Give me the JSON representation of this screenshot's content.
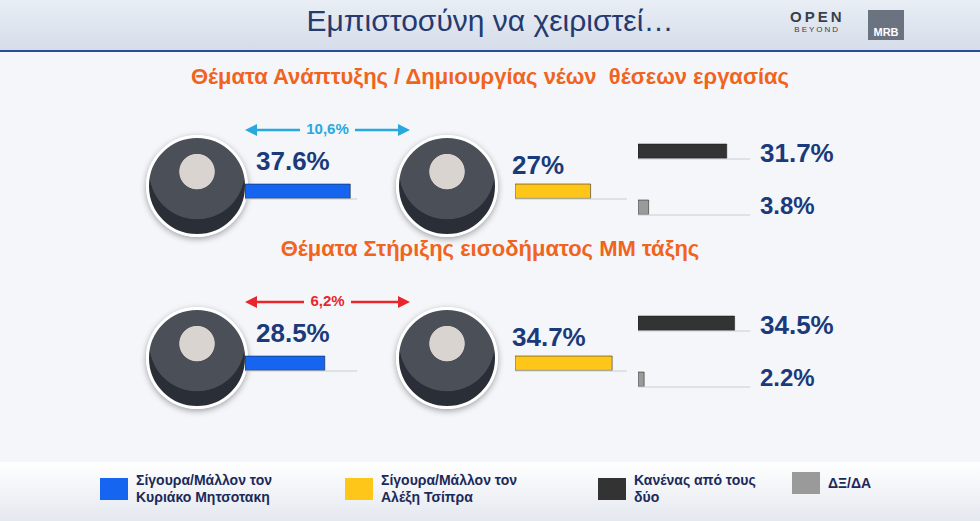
{
  "header": {
    "title": "Εμπιστοσύνη να χειριστεί…",
    "logo": "OPEN",
    "logo_sub": "BEYOND",
    "logo_mark": "MRB"
  },
  "chart_data": [
    {
      "type": "bar",
      "title": "Θέματα Ανάπτυξης / Δημιουργίας νέων  θέσεων εργασίας",
      "orientation": "horizontal",
      "categories": [
        "Σίγουρα/Μάλλον τον Κυριάκο Μητσοτακη",
        "Σίγουρα/Μάλλον τον Αλέξη Τσίπρα",
        "Κανένας από τους δύο",
        "ΔΞ/ΔΑ"
      ],
      "values": [
        37.6,
        27,
        31.7,
        3.8
      ],
      "value_labels": [
        "37.6%",
        "27%",
        "31.7%",
        "3.8%"
      ],
      "colors": [
        "#1565f0",
        "#ffc61a",
        "#333333",
        "#9a9a9a"
      ],
      "xlim": [
        0,
        40
      ],
      "tick_labels": false,
      "data_labels": true,
      "legend": "bottom",
      "annotation": "10,6%"
    },
    {
      "type": "bar",
      "title": "Θέματα Στήριξης εισοδήματος ΜΜ τάξης",
      "orientation": "horizontal",
      "categories": [
        "Σίγουρα/Μάλλον τον Κυριάκο Μητσοτακη",
        "Σίγουρα/Μάλλον τον Αλέξη Τσίπρα",
        "Κανένας από τους δύο",
        "ΔΞ/ΔΑ"
      ],
      "values": [
        28.5,
        34.7,
        34.5,
        2.2
      ],
      "value_labels": [
        "28.5%",
        "34.7%",
        "34.5%",
        "2.2%"
      ],
      "colors": [
        "#1565f0",
        "#ffc61a",
        "#333333",
        "#9a9a9a"
      ],
      "xlim": [
        0,
        40
      ],
      "tick_labels": false,
      "data_labels": true,
      "legend": "bottom",
      "annotation": "6,2%"
    }
  ]
}
